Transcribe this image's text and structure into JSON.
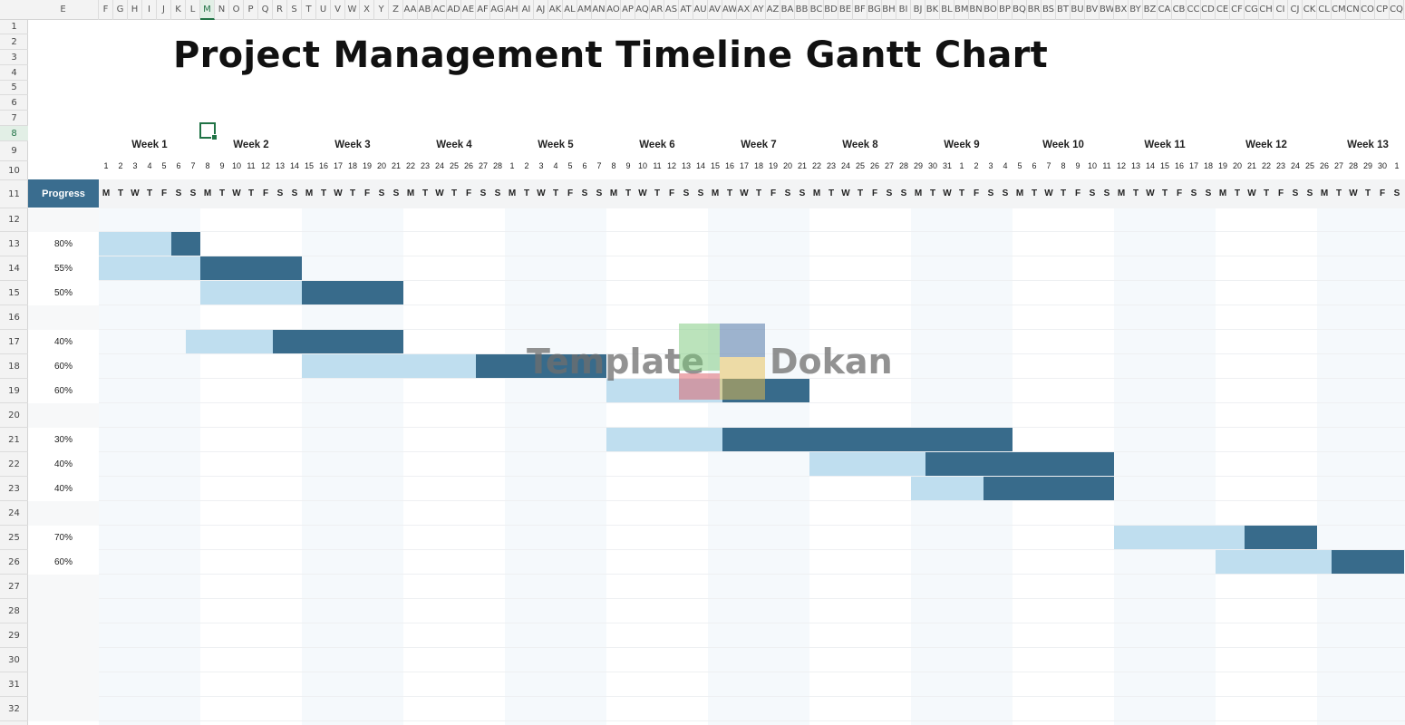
{
  "title": "Project Management Timeline Gantt Chart",
  "column_headers": [
    "E",
    "F",
    "G",
    "H",
    "I",
    "J",
    "K",
    "L",
    "M",
    "N",
    "O",
    "P",
    "Q",
    "R",
    "S",
    "T",
    "U",
    "V",
    "W",
    "X",
    "Y",
    "Z",
    "AA",
    "AB",
    "AC",
    "AD",
    "AE",
    "AF",
    "AG",
    "AH",
    "AI",
    "AJ",
    "AK",
    "AL",
    "AM",
    "AN",
    "AO",
    "AP",
    "AQ",
    "AR",
    "AS",
    "AT",
    "AU",
    "AV",
    "AW",
    "AX",
    "AY",
    "AZ",
    "BA",
    "BB",
    "BC",
    "BD",
    "BE",
    "BF",
    "BG",
    "BH",
    "BI",
    "BJ",
    "BK",
    "BL",
    "BM",
    "BN",
    "BO",
    "BP",
    "BQ",
    "BR",
    "BS",
    "BT",
    "BU",
    "BV",
    "BW",
    "BX",
    "BY",
    "BZ",
    "CA",
    "CB",
    "CC",
    "CD",
    "CE",
    "CF",
    "CG",
    "CH",
    "CI",
    "CJ",
    "CK",
    "CL",
    "CM",
    "CN",
    "CO",
    "CP",
    "CQ"
  ],
  "selected_column": "M",
  "row_numbers": [
    "1",
    "2",
    "3",
    "4",
    "5",
    "6",
    "7",
    "8",
    "9",
    "10",
    "11",
    "12",
    "13",
    "14",
    "15",
    "16",
    "17",
    "18",
    "19",
    "20",
    "21",
    "22",
    "23",
    "24",
    "25",
    "26",
    "27",
    "28",
    "29",
    "30",
    "31",
    "32"
  ],
  "selected_row": "8",
  "weeks": [
    "Week 1",
    "Week 2",
    "Week 3",
    "Week 4",
    "Week 5",
    "Week 6",
    "Week 7",
    "Week 8",
    "Week 9",
    "Week 10",
    "Week 11",
    "Week 12",
    "Week 13"
  ],
  "day_numbers": [
    "1",
    "2",
    "3",
    "4",
    "5",
    "6",
    "7",
    "8",
    "9",
    "10",
    "11",
    "12",
    "13",
    "14",
    "15",
    "16",
    "17",
    "18",
    "19",
    "20",
    "21",
    "22",
    "23",
    "24",
    "25",
    "26",
    "27",
    "28",
    "1",
    "2",
    "3",
    "4",
    "5",
    "6",
    "7",
    "8",
    "9",
    "10",
    "11",
    "12",
    "13",
    "14",
    "15",
    "16",
    "17",
    "18",
    "19",
    "20",
    "21",
    "22",
    "23",
    "24",
    "25",
    "26",
    "27",
    "28",
    "29",
    "30",
    "31",
    "1",
    "2",
    "3",
    "4",
    "5",
    "6",
    "7",
    "8",
    "9",
    "10",
    "11",
    "12",
    "13",
    "14",
    "15",
    "16",
    "17",
    "18",
    "19",
    "20",
    "21",
    "22",
    "23",
    "24",
    "25",
    "26",
    "27",
    "28",
    "29",
    "30",
    "1"
  ],
  "day_letters": [
    "M",
    "T",
    "W",
    "T",
    "F",
    "S",
    "S"
  ],
  "progress_header": "Progress",
  "tasks": [
    {
      "row": "13",
      "progress": "80%",
      "start": 0,
      "split": 5,
      "end": 7
    },
    {
      "row": "14",
      "progress": "55%",
      "start": 0,
      "split": 7,
      "end": 14
    },
    {
      "row": "15",
      "progress": "50%",
      "start": 7,
      "split": 14,
      "end": 21
    },
    {
      "row": "17",
      "progress": "40%",
      "start": 6,
      "split": 12,
      "end": 21
    },
    {
      "row": "18",
      "progress": "60%",
      "start": 14,
      "split": 26,
      "end": 35
    },
    {
      "row": "19",
      "progress": "60%",
      "start": 35,
      "split": 43,
      "end": 49
    },
    {
      "row": "21",
      "progress": "30%",
      "start": 35,
      "split": 43,
      "end": 63
    },
    {
      "row": "22",
      "progress": "40%",
      "start": 49,
      "split": 57,
      "end": 70
    },
    {
      "row": "23",
      "progress": "40%",
      "start": 56,
      "split": 61,
      "end": 70
    },
    {
      "row": "25",
      "progress": "70%",
      "start": 70,
      "split": 79,
      "end": 84
    },
    {
      "row": "26",
      "progress": "60%",
      "start": 77,
      "split": 85,
      "end": 90
    }
  ],
  "colors": {
    "completed": "#bfdeef",
    "remaining": "#386b8b",
    "header_fill": "#3a6d8f",
    "weekend_stripe": "#f5f9fc",
    "selection": "#217346"
  },
  "watermark": {
    "left_text": "Template",
    "right_text": "Dokan"
  }
}
